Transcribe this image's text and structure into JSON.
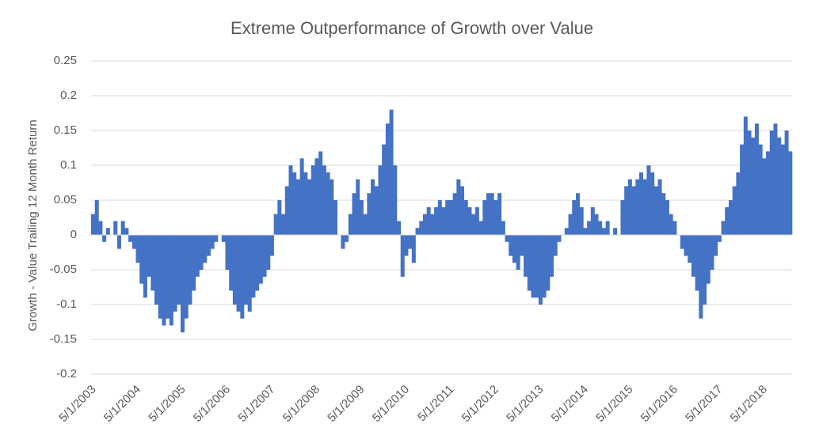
{
  "chart_data": {
    "type": "bar",
    "title": "Extreme Outperformance  of Growth over Value",
    "y_label": "Growth - Value Trailing 12 Month Return",
    "color": "#4472c4",
    "grid": true,
    "ylim": [
      -0.2,
      0.25
    ],
    "yticks": [
      0.25,
      0.2,
      0.15,
      0.1,
      0.05,
      0,
      -0.05,
      -0.1,
      -0.15,
      -0.2
    ],
    "categories": [
      "5/1/2003",
      null,
      null,
      null,
      null,
      null,
      null,
      null,
      null,
      null,
      null,
      null,
      "5/1/2004",
      null,
      null,
      null,
      null,
      null,
      null,
      null,
      null,
      null,
      null,
      null,
      "5/1/2005",
      null,
      null,
      null,
      null,
      null,
      null,
      null,
      null,
      null,
      null,
      null,
      "5/1/2006",
      null,
      null,
      null,
      null,
      null,
      null,
      null,
      null,
      null,
      null,
      null,
      "5/1/2007",
      null,
      null,
      null,
      null,
      null,
      null,
      null,
      null,
      null,
      null,
      null,
      "5/1/2008",
      null,
      null,
      null,
      null,
      null,
      null,
      null,
      null,
      null,
      null,
      null,
      "5/1/2009",
      null,
      null,
      null,
      null,
      null,
      null,
      null,
      null,
      null,
      null,
      null,
      "5/1/2010",
      null,
      null,
      null,
      null,
      null,
      null,
      null,
      null,
      null,
      null,
      null,
      "5/1/2011",
      null,
      null,
      null,
      null,
      null,
      null,
      null,
      null,
      null,
      null,
      null,
      "5/1/2012",
      null,
      null,
      null,
      null,
      null,
      null,
      null,
      null,
      null,
      null,
      null,
      "5/1/2013",
      null,
      null,
      null,
      null,
      null,
      null,
      null,
      null,
      null,
      null,
      null,
      "5/1/2014",
      null,
      null,
      null,
      null,
      null,
      null,
      null,
      null,
      null,
      null,
      null,
      "5/1/2015",
      null,
      null,
      null,
      null,
      null,
      null,
      null,
      null,
      null,
      null,
      null,
      "5/1/2016",
      null,
      null,
      null,
      null,
      null,
      null,
      null,
      null,
      null,
      null,
      null,
      "5/1/2017",
      null,
      null,
      null,
      null,
      null,
      null,
      null,
      null,
      null,
      null,
      null,
      "5/1/2018",
      null,
      null,
      null,
      null,
      null,
      null,
      null
    ],
    "values": [
      0.03,
      0.05,
      0.02,
      -0.01,
      0.01,
      0.0,
      0.02,
      -0.02,
      0.02,
      0.01,
      -0.01,
      -0.02,
      -0.04,
      -0.07,
      -0.09,
      -0.06,
      -0.08,
      -0.1,
      -0.12,
      -0.13,
      -0.12,
      -0.13,
      -0.11,
      -0.1,
      -0.14,
      -0.12,
      -0.1,
      -0.08,
      -0.06,
      -0.05,
      -0.04,
      -0.03,
      -0.02,
      -0.01,
      0.0,
      -0.01,
      -0.05,
      -0.08,
      -0.1,
      -0.11,
      -0.12,
      -0.1,
      -0.11,
      -0.09,
      -0.08,
      -0.07,
      -0.06,
      -0.05,
      -0.03,
      0.03,
      0.05,
      0.03,
      0.07,
      0.1,
      0.09,
      0.08,
      0.11,
      0.09,
      0.08,
      0.1,
      0.11,
      0.12,
      0.1,
      0.09,
      0.08,
      0.05,
      0.0,
      -0.02,
      -0.01,
      0.03,
      0.06,
      0.08,
      0.05,
      0.03,
      0.06,
      0.08,
      0.07,
      0.1,
      0.13,
      0.16,
      0.18,
      0.1,
      0.02,
      -0.06,
      -0.03,
      -0.02,
      -0.04,
      0.01,
      0.02,
      0.03,
      0.04,
      0.03,
      0.04,
      0.05,
      0.04,
      0.05,
      0.05,
      0.06,
      0.08,
      0.07,
      0.05,
      0.04,
      0.03,
      0.04,
      0.02,
      0.05,
      0.06,
      0.06,
      0.05,
      0.06,
      0.02,
      -0.01,
      -0.03,
      -0.04,
      -0.05,
      -0.03,
      -0.06,
      -0.08,
      -0.09,
      -0.09,
      -0.1,
      -0.09,
      -0.08,
      -0.06,
      -0.03,
      -0.01,
      0.0,
      0.01,
      0.03,
      0.05,
      0.06,
      0.04,
      0.01,
      0.02,
      0.04,
      0.03,
      0.02,
      0.01,
      0.02,
      0.0,
      0.01,
      0.0,
      0.05,
      0.07,
      0.08,
      0.07,
      0.08,
      0.09,
      0.08,
      0.1,
      0.09,
      0.07,
      0.08,
      0.06,
      0.05,
      0.03,
      0.02,
      0.0,
      -0.02,
      -0.03,
      -0.04,
      -0.06,
      -0.08,
      -0.12,
      -0.1,
      -0.07,
      -0.05,
      -0.03,
      -0.01,
      0.02,
      0.04,
      0.05,
      0.07,
      0.09,
      0.13,
      0.17,
      0.15,
      0.14,
      0.16,
      0.13,
      0.11,
      0.12,
      0.15,
      0.16,
      0.14,
      0.13,
      0.15,
      0.12
    ]
  }
}
